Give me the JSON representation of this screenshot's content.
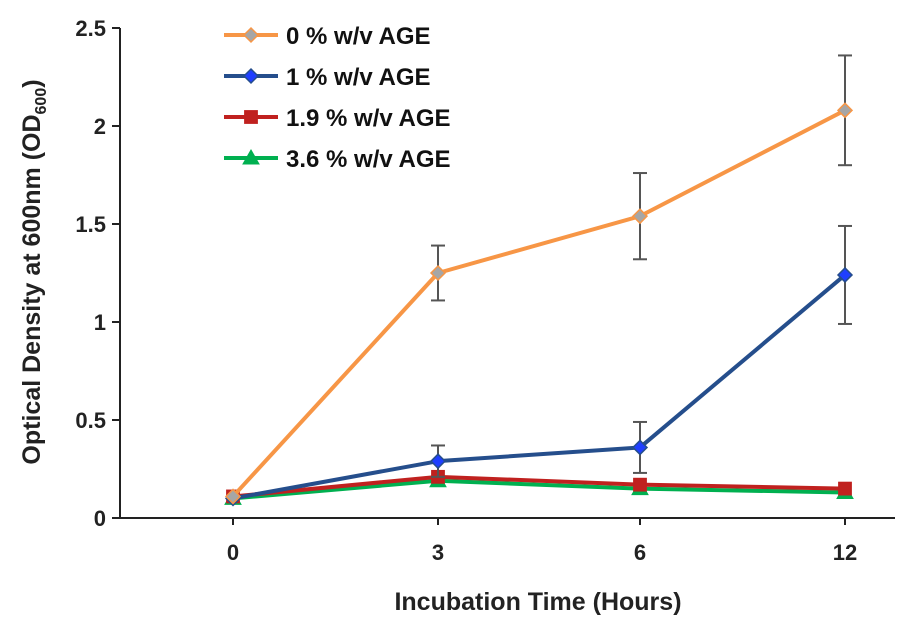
{
  "chart_data": {
    "type": "line",
    "xlabel": "Incubation Time (Hours)",
    "ylabel_main": "Optical Density at 600nm (OD",
    "ylabel_sub": "600",
    "ylabel_tail": ")",
    "categories": [
      "0",
      "3",
      "6",
      "12"
    ],
    "y_ticks": [
      "0",
      "0.5",
      "1",
      "1.5",
      "2",
      "2.5"
    ],
    "ylim": [
      0,
      2.5
    ],
    "grid": false,
    "legend_position": "top-left",
    "series": [
      {
        "name": "0 % w/v AGE",
        "color": "#F79646",
        "marker": "diamond",
        "marker_fill": "#A6A6A6",
        "values": [
          0.11,
          1.25,
          1.54,
          2.08
        ],
        "errors": [
          null,
          0.14,
          0.22,
          0.28
        ]
      },
      {
        "name": "1 % w/v AGE",
        "color": "#254E8C",
        "marker": "diamond",
        "marker_fill": "#1F3FFF",
        "values": [
          0.1,
          0.29,
          0.36,
          1.24
        ],
        "errors": [
          null,
          0.08,
          0.13,
          0.25
        ]
      },
      {
        "name": "1.9 % w/v AGE",
        "color": "#C0211F",
        "marker": "square",
        "marker_fill": "#C0211F",
        "values": [
          0.11,
          0.21,
          0.17,
          0.15
        ],
        "errors": [
          null,
          null,
          null,
          null
        ]
      },
      {
        "name": "3.6 % w/v AGE",
        "color": "#00B050",
        "marker": "triangle",
        "marker_fill": "#00B050",
        "values": [
          0.1,
          0.19,
          0.15,
          0.13
        ],
        "errors": [
          null,
          null,
          null,
          null
        ]
      }
    ]
  }
}
